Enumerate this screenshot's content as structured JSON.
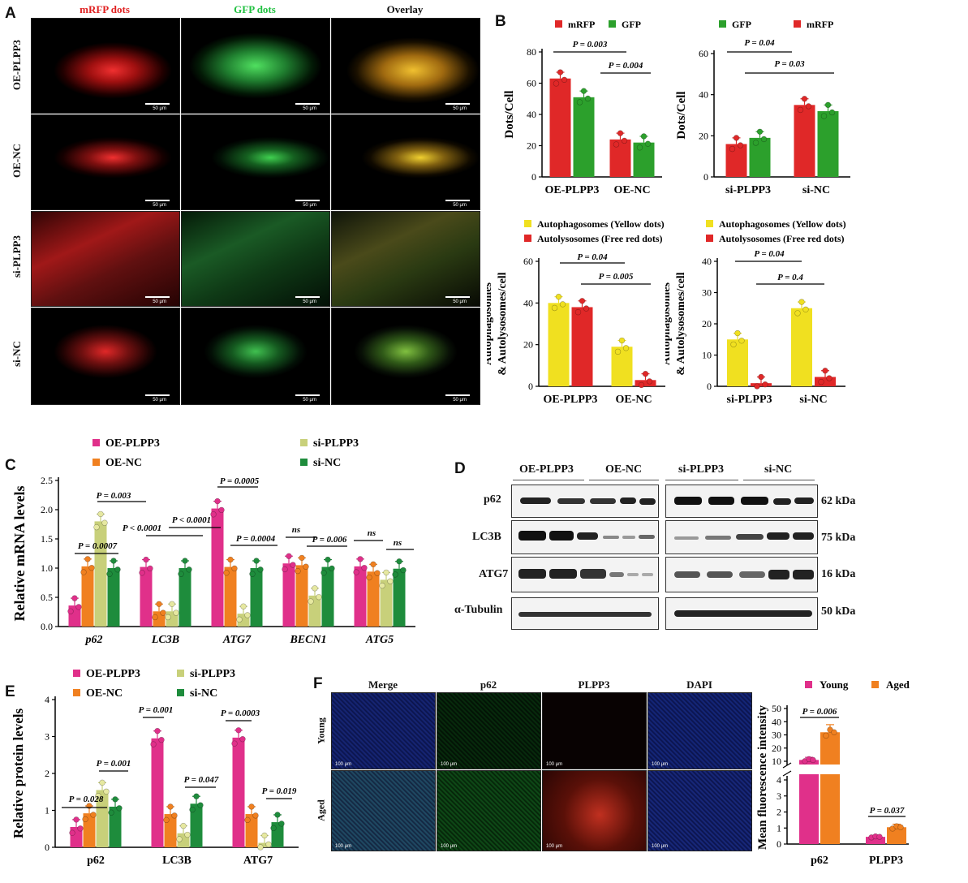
{
  "panels": {
    "A": "A",
    "B": "B",
    "C": "C",
    "D": "D",
    "E": "E",
    "F": "F"
  },
  "panel_a": {
    "columns": [
      "mRFP dots",
      "GFP dots",
      "Overlay"
    ],
    "rows": [
      "OE-PLPP3",
      "OE-NC",
      "si-PLPP3",
      "si-NC"
    ],
    "scale": "50 μm",
    "colors": {
      "red": "#e02020",
      "green": "#20c040",
      "overlay": "#d8b020"
    }
  },
  "panel_f": {
    "columns": [
      "Merge",
      "p62",
      "PLPP3",
      "DAPI"
    ],
    "rows": [
      "Young",
      "Aged"
    ],
    "scale": "100 μm"
  },
  "panel_d": {
    "groups": [
      "OE-PLPP3",
      "OE-NC",
      "si-PLPP3",
      "si-NC"
    ],
    "proteins": [
      {
        "name": "p62",
        "kda": "62 kDa"
      },
      {
        "name": "LC3B",
        "kda": "75 kDa"
      },
      {
        "name": "ATG7",
        "kda": "16 kDa"
      },
      {
        "name": "α-Tubulin",
        "kda": "50 kDa"
      }
    ]
  },
  "chart_data": [
    {
      "id": "B1",
      "type": "bar",
      "categories": [
        "OE-PLPP3",
        "OE-NC"
      ],
      "series": [
        {
          "name": "mRFP",
          "color": "#e02828",
          "values": [
            63,
            24
          ]
        },
        {
          "name": "GFP",
          "color": "#2ca02c",
          "values": [
            51,
            22
          ]
        }
      ],
      "ylabel": "Dots/Cell",
      "ylim": [
        0,
        80
      ],
      "yticks": [
        0,
        20,
        40,
        60,
        80
      ],
      "annotations": [
        "P = 0.003",
        "P = 0.004"
      ]
    },
    {
      "id": "B2",
      "type": "bar",
      "categories": [
        "si-PLPP3",
        "si-NC"
      ],
      "series": [
        {
          "name": "mRFP",
          "color": "#e02828",
          "values": [
            16,
            35
          ]
        },
        {
          "name": "GFP",
          "color": "#2ca02c",
          "values": [
            19,
            32
          ]
        }
      ],
      "legend_order": [
        "GFP",
        "mRFP"
      ],
      "ylabel": "Dots/Cell",
      "ylim": [
        0,
        60
      ],
      "yticks": [
        0,
        20,
        40,
        60
      ],
      "annotations": [
        "P = 0.04",
        "P = 0.03"
      ]
    },
    {
      "id": "B3",
      "type": "bar",
      "categories": [
        "OE-PLPP3",
        "OE-NC"
      ],
      "series": [
        {
          "name": "Autophagosomes (Yellow dots)",
          "color": "#f0e020",
          "values": [
            40,
            19
          ]
        },
        {
          "name": "Autolysosomes (Free red dots)",
          "color": "#e02828",
          "values": [
            38,
            3
          ]
        }
      ],
      "ylabel": "Autophagosomes & Autolysosomes/cell",
      "ylim": [
        0,
        60
      ],
      "yticks": [
        0,
        20,
        40,
        60
      ],
      "annotations": [
        "P = 0.04",
        "P = 0.005"
      ]
    },
    {
      "id": "B4",
      "type": "bar",
      "categories": [
        "si-PLPP3",
        "si-NC"
      ],
      "series": [
        {
          "name": "Autophagosomes (Yellow dots)",
          "color": "#f0e020",
          "values": [
            15,
            25
          ]
        },
        {
          "name": "Autolysosomes (Free red dots)",
          "color": "#e02828",
          "values": [
            1,
            3
          ]
        }
      ],
      "ylabel": "Autophagosomes & Autolysosomes/cell",
      "ylim": [
        0,
        40
      ],
      "yticks": [
        0,
        10,
        20,
        30,
        40
      ],
      "annotations": [
        "P = 0.04",
        "P = 0.4"
      ]
    },
    {
      "id": "C",
      "type": "bar",
      "categories": [
        "p62",
        "LC3B",
        "ATG7",
        "BECN1",
        "ATG5"
      ],
      "series": [
        {
          "name": "OE-PLPP3",
          "color": "#e0308a",
          "values": [
            0.36,
            1.02,
            2.02,
            1.08,
            1.03
          ]
        },
        {
          "name": "OE-NC",
          "color": "#f08020",
          "values": [
            1.03,
            0.26,
            1.02,
            1.05,
            0.94
          ]
        },
        {
          "name": "si-PLPP3",
          "color": "#c8d07a",
          "values": [
            1.8,
            0.26,
            0.22,
            0.53,
            0.8
          ]
        },
        {
          "name": "si-NC",
          "color": "#1e8c3c",
          "values": [
            1.0,
            1.0,
            1.0,
            1.02,
            0.99
          ]
        }
      ],
      "ylabel": "Relative mRNA levels",
      "ylim": [
        0,
        2.5
      ],
      "yticks": [
        0.0,
        0.5,
        1.0,
        1.5,
        2.0,
        2.5
      ],
      "annotations": [
        "P = 0.0007",
        "P = 0.003",
        "P < 0.0001",
        "P < 0.0001",
        "P = 0.0005",
        "P = 0.0004",
        "ns",
        "P = 0.006",
        "ns",
        "ns"
      ]
    },
    {
      "id": "E",
      "type": "bar",
      "categories": [
        "p62",
        "LC3B",
        "ATG7"
      ],
      "series": [
        {
          "name": "OE-PLPP3",
          "color": "#e0308a",
          "values": [
            0.55,
            2.95,
            2.97
          ]
        },
        {
          "name": "OE-NC",
          "color": "#f08020",
          "values": [
            0.92,
            0.9,
            0.9
          ]
        },
        {
          "name": "si-PLPP3",
          "color": "#c8d07a",
          "values": [
            1.55,
            0.38,
            0.12
          ]
        },
        {
          "name": "si-NC",
          "color": "#1e8c3c",
          "values": [
            1.1,
            1.18,
            0.68
          ]
        }
      ],
      "ylabel": "Relative protein levels",
      "ylim": [
        0,
        4
      ],
      "yticks": [
        0,
        1,
        2,
        3,
        4
      ],
      "annotations": [
        "P = 0.028",
        "P = 0.001",
        "P = 0.001",
        "P = 0.047",
        "P = 0.0003",
        "P = 0.019"
      ]
    },
    {
      "id": "F",
      "type": "bar",
      "categories": [
        "p62",
        "PLPP3"
      ],
      "series": [
        {
          "name": "Young",
          "color": "#e0308a",
          "values": [
            11,
            0.45
          ]
        },
        {
          "name": "Aged",
          "color": "#f08020",
          "values": [
            32,
            1.05
          ]
        }
      ],
      "ylabel": "Mean fluorescence intensity",
      "yticks": [
        0,
        1,
        2,
        3,
        4,
        10,
        20,
        30,
        40,
        50
      ],
      "annotations": [
        "P = 0.006",
        "P = 0.037"
      ]
    }
  ]
}
